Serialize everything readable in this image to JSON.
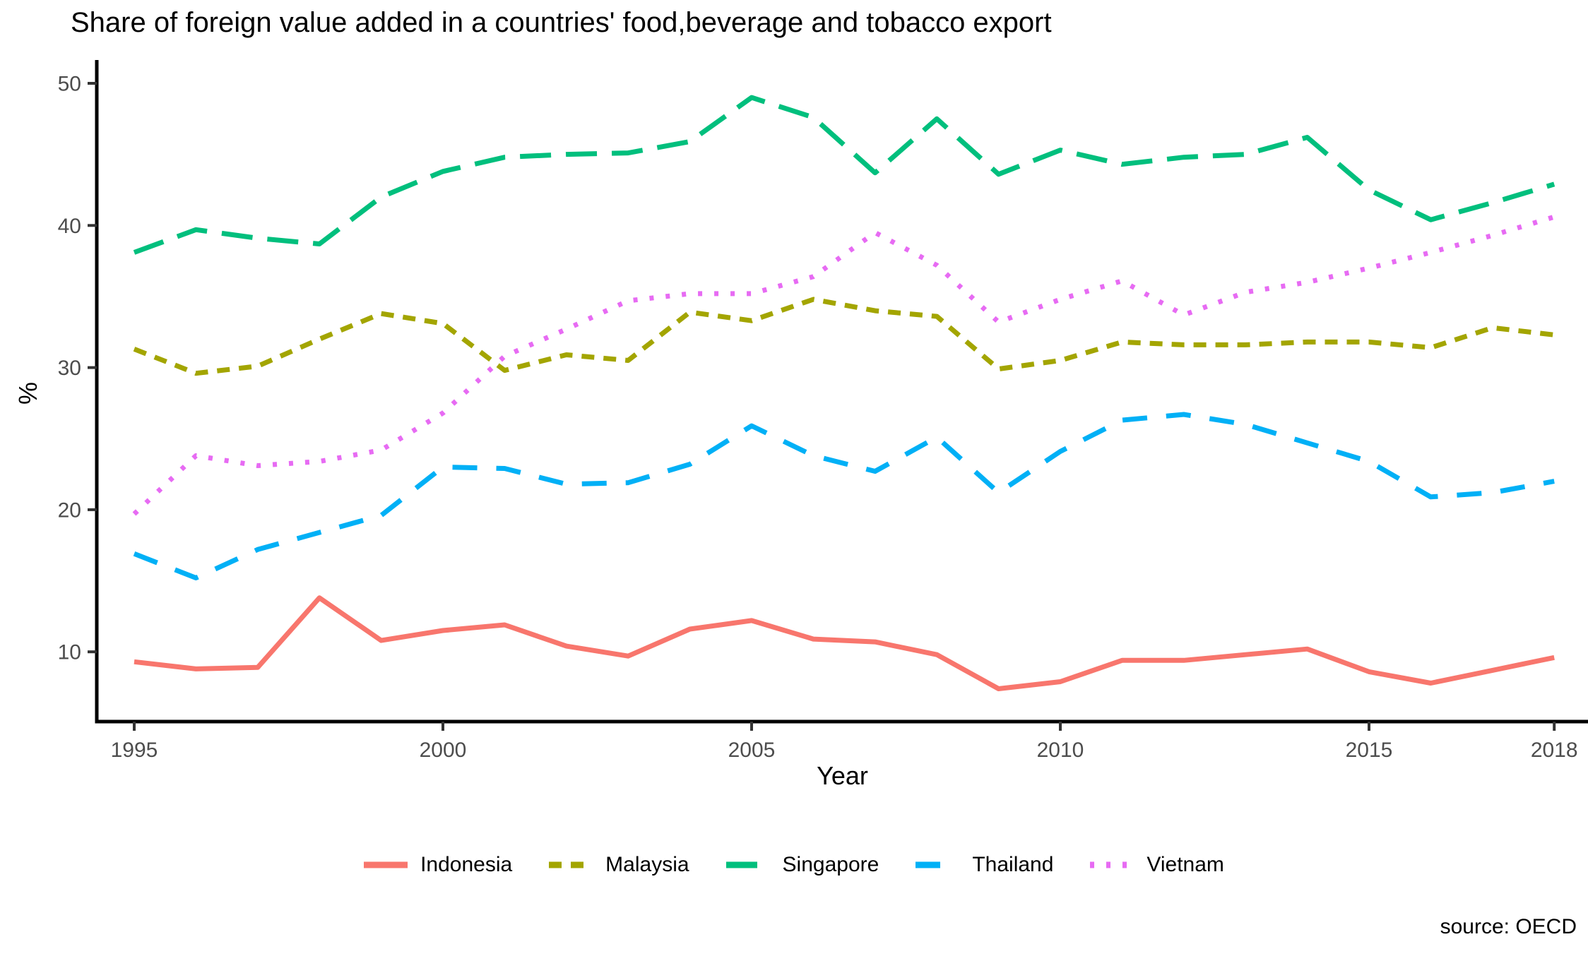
{
  "chart_data": {
    "type": "line",
    "title": "Share of foreign value added in a countries' food,beverage and tobacco export",
    "xlabel": "Year",
    "ylabel": "%",
    "source": "source: OECD",
    "grid": false,
    "legend_position": "bottom",
    "xlim": [
      1994.4,
      2018.9
    ],
    "ylim": [
      5.1,
      51.6
    ],
    "x_ticks": [
      1995,
      2000,
      2005,
      2010,
      2015,
      2018
    ],
    "y_ticks": [
      10,
      20,
      30,
      40,
      50
    ],
    "axis_color": "#000000",
    "tick_label_color": "#4d4d4d",
    "x": [
      1995,
      1996,
      1997,
      1998,
      1999,
      2000,
      2001,
      2002,
      2003,
      2004,
      2005,
      2006,
      2007,
      2008,
      2009,
      2010,
      2011,
      2012,
      2013,
      2014,
      2015,
      2016,
      2017,
      2018
    ],
    "series": [
      {
        "name": "Indonesia",
        "color": "#F8766D",
        "linetype": "solid",
        "values": [
          9.3,
          8.8,
          8.9,
          13.8,
          10.8,
          11.5,
          11.9,
          10.4,
          9.7,
          11.6,
          12.2,
          10.9,
          10.7,
          9.8,
          7.4,
          7.9,
          9.4,
          9.4,
          9.8,
          10.2,
          8.6,
          7.8,
          8.7,
          9.6
        ]
      },
      {
        "name": "Malaysia",
        "color": "#A3A500",
        "linetype": "dashed-short",
        "values": [
          31.3,
          29.6,
          30.1,
          32.0,
          33.8,
          33.1,
          29.8,
          30.9,
          30.5,
          33.9,
          33.3,
          34.8,
          34.0,
          33.6,
          29.9,
          30.5,
          31.8,
          31.6,
          31.6,
          31.8,
          31.8,
          31.4,
          32.8,
          32.3
        ]
      },
      {
        "name": "Singapore",
        "color": "#00BF7D",
        "linetype": "dashed-long",
        "values": [
          38.1,
          39.7,
          39.1,
          38.7,
          42.0,
          43.8,
          44.8,
          45.0,
          45.1,
          45.9,
          49.0,
          47.6,
          43.7,
          47.5,
          43.6,
          45.3,
          44.3,
          44.8,
          45.0,
          46.2,
          42.5,
          40.4,
          41.6,
          42.9
        ]
      },
      {
        "name": "Thailand",
        "color": "#00B0F6",
        "linetype": "dashed-medium",
        "values": [
          16.9,
          15.2,
          17.2,
          18.4,
          19.6,
          23.0,
          22.9,
          21.8,
          21.9,
          23.2,
          25.9,
          23.8,
          22.7,
          25.1,
          21.2,
          24.1,
          26.3,
          26.7,
          26.0,
          24.7,
          23.4,
          20.9,
          21.2,
          22.0
        ]
      },
      {
        "name": "Vietnam",
        "color": "#E76BF3",
        "linetype": "dotted",
        "values": [
          19.7,
          23.8,
          23.1,
          23.4,
          24.2,
          26.8,
          30.8,
          32.7,
          34.7,
          35.2,
          35.2,
          36.4,
          39.5,
          37.2,
          33.2,
          34.8,
          36.1,
          33.7,
          35.3,
          36.0,
          37.0,
          38.1,
          39.3,
          40.6
        ]
      }
    ]
  }
}
